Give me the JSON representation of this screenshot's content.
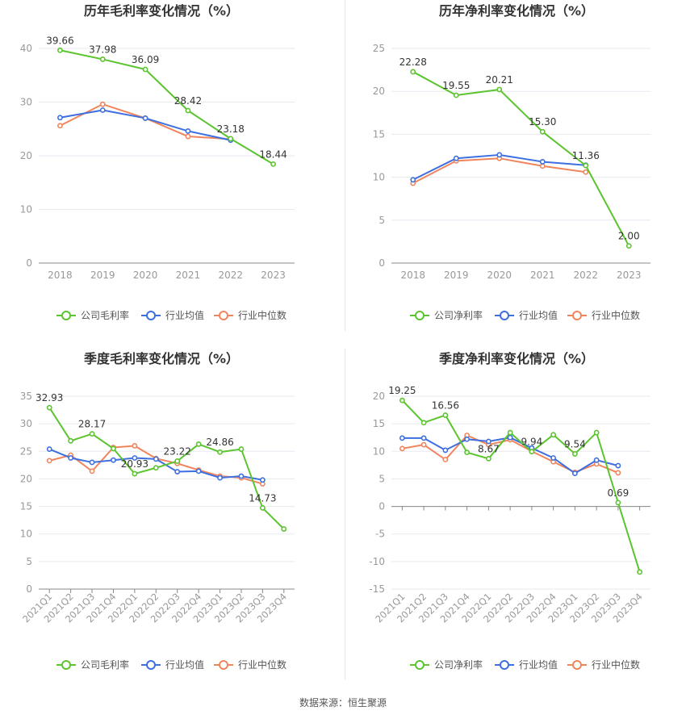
{
  "source": "数据来源：恒生聚源",
  "colors": {
    "company": "#5bc42e",
    "avg": "#3d6fe0",
    "median": "#f0855d",
    "grid": "#e8eaf0",
    "axis": "#999999",
    "title": "#333333"
  },
  "chart_data": [
    {
      "id": "annual-gross",
      "type": "line",
      "title": "历年毛利率变化情况（%）",
      "categories": [
        "2018",
        "2019",
        "2020",
        "2021",
        "2022",
        "2023"
      ],
      "ylim": [
        0,
        40
      ],
      "yticks": [
        0,
        10,
        20,
        30,
        40
      ],
      "rotate_x": false,
      "series": [
        {
          "name": "公司毛利率",
          "key": "company",
          "values": [
            39.66,
            37.98,
            36.09,
            28.42,
            23.18,
            18.44
          ],
          "labels": [
            "39.66",
            "37.98",
            "36.09",
            "28.42",
            "23.18",
            "18.44"
          ]
        },
        {
          "name": "行业均值",
          "key": "avg",
          "values": [
            27.1,
            28.5,
            27.0,
            24.6,
            22.9,
            null
          ]
        },
        {
          "name": "行业中位数",
          "key": "median",
          "values": [
            25.6,
            29.6,
            27.0,
            23.6,
            23.1,
            null
          ]
        }
      ]
    },
    {
      "id": "annual-net",
      "type": "line",
      "title": "历年净利率变化情况（%）",
      "categories": [
        "2018",
        "2019",
        "2020",
        "2021",
        "2022",
        "2023"
      ],
      "ylim": [
        0,
        25
      ],
      "yticks": [
        0,
        5,
        10,
        15,
        20,
        25
      ],
      "rotate_x": false,
      "series": [
        {
          "name": "公司净利率",
          "key": "company",
          "values": [
            22.28,
            19.55,
            20.21,
            15.3,
            11.36,
            2.0
          ],
          "labels": [
            "22.28",
            "19.55",
            "20.21",
            "15.30",
            "11.36",
            "2.00"
          ]
        },
        {
          "name": "行业均值",
          "key": "avg",
          "values": [
            9.7,
            12.2,
            12.6,
            11.8,
            11.4,
            null
          ]
        },
        {
          "name": "行业中位数",
          "key": "median",
          "values": [
            9.3,
            11.9,
            12.2,
            11.3,
            10.6,
            null
          ]
        }
      ]
    },
    {
      "id": "quarterly-gross",
      "type": "line",
      "title": "季度毛利率变化情况（%）",
      "categories": [
        "2021Q1",
        "2021Q2",
        "2021Q3",
        "2021Q4",
        "2022Q1",
        "2022Q2",
        "2022Q3",
        "2022Q4",
        "2023Q1",
        "2023Q2",
        "2023Q3",
        "2023Q4"
      ],
      "ylim": [
        0,
        35
      ],
      "yticks": [
        0,
        5,
        10,
        15,
        20,
        25,
        30,
        35
      ],
      "rotate_x": true,
      "series": [
        {
          "name": "公司毛利率",
          "key": "company",
          "values": [
            32.93,
            26.9,
            28.17,
            25.5,
            20.93,
            22.0,
            23.22,
            26.3,
            24.86,
            25.4,
            14.73,
            10.9
          ],
          "labels": [
            "32.93",
            null,
            "28.17",
            null,
            "20.93",
            null,
            "23.22",
            null,
            "24.86",
            null,
            "14.73",
            null
          ]
        },
        {
          "name": "行业均值",
          "key": "avg",
          "values": [
            25.4,
            23.8,
            23.0,
            23.4,
            23.8,
            23.6,
            21.3,
            21.4,
            20.2,
            20.5,
            19.8,
            null
          ]
        },
        {
          "name": "行业中位数",
          "key": "median",
          "values": [
            23.3,
            24.3,
            21.4,
            25.7,
            26.0,
            23.7,
            22.8,
            21.6,
            20.5,
            20.2,
            19.1,
            null
          ]
        }
      ]
    },
    {
      "id": "quarterly-net",
      "type": "line",
      "title": "季度净利率变化情况（%）",
      "categories": [
        "2021Q1",
        "2021Q2",
        "2021Q3",
        "2021Q4",
        "2022Q1",
        "2022Q2",
        "2022Q3",
        "2022Q4",
        "2023Q1",
        "2023Q2",
        "2023Q3",
        "2023Q4"
      ],
      "ylim": [
        -15,
        20
      ],
      "yticks": [
        -15,
        -10,
        -5,
        0,
        5,
        10,
        15,
        20
      ],
      "rotate_x": true,
      "series": [
        {
          "name": "公司净利率",
          "key": "company",
          "values": [
            19.25,
            15.2,
            16.56,
            9.8,
            8.67,
            13.4,
            9.94,
            13.0,
            9.54,
            13.4,
            0.69,
            -11.9
          ],
          "labels": [
            "19.25",
            null,
            "16.56",
            null,
            "8.67",
            null,
            "9.94",
            null,
            "9.54",
            null,
            "0.69",
            null
          ]
        },
        {
          "name": "行业均值",
          "key": "avg",
          "values": [
            12.4,
            12.4,
            10.2,
            12.2,
            11.8,
            12.5,
            10.6,
            8.8,
            6.0,
            8.4,
            7.4,
            null
          ]
        },
        {
          "name": "行业中位数",
          "key": "median",
          "values": [
            10.5,
            11.2,
            8.5,
            12.9,
            11.2,
            12.1,
            10.0,
            8.1,
            6.2,
            7.7,
            6.1,
            null
          ]
        }
      ]
    }
  ]
}
